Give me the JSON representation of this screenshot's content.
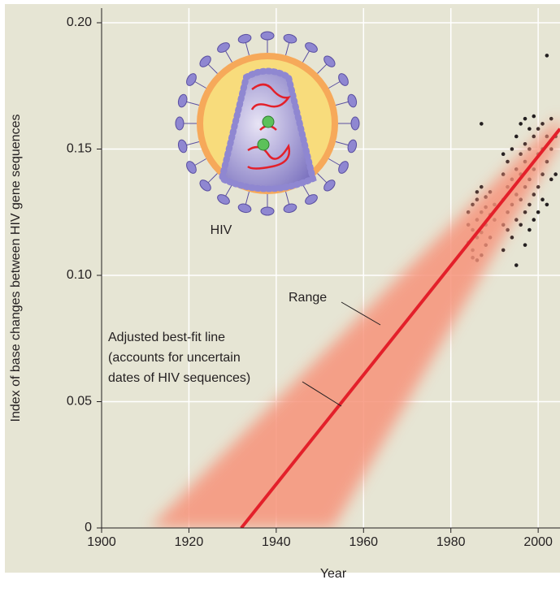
{
  "chart_data": {
    "type": "scatter",
    "x_label": "Year",
    "y_label": "Index of base changes between HIV gene sequences",
    "illustration_label": "HIV",
    "xlim": [
      1900,
      2005
    ],
    "ylim": [
      0,
      0.2
    ],
    "xticks": [
      1900,
      1920,
      1940,
      1960,
      1980,
      2000
    ],
    "yticks": [
      0,
      0.05,
      {
        "value": 0.1,
        "label": "0.10"
      },
      0.15,
      {
        "value": 0.2,
        "label": "0.20"
      }
    ],
    "grid": true,
    "series": [
      {
        "type": "scatter",
        "color": "#231f20",
        "x": [
          1984,
          1984,
          1984,
          1985,
          1985,
          1985,
          1985,
          1986,
          1986,
          1986,
          1986,
          1986,
          1987,
          1987,
          1987,
          1987,
          1987,
          1988,
          1988,
          1988,
          1988,
          1989,
          1989,
          1989,
          1990,
          1990,
          1992,
          1992,
          1992,
          1992,
          1992,
          1993,
          1993,
          1993,
          1993,
          1994,
          1994,
          1994,
          1994,
          1995,
          1995,
          1995,
          1995,
          1995,
          1996,
          1996,
          1996,
          1996,
          1996,
          1997,
          1997,
          1997,
          1997,
          1997,
          1997,
          1998,
          1998,
          1998,
          1998,
          1998,
          1999,
          1999,
          1999,
          1999,
          1999,
          2000,
          2000,
          2000,
          2000,
          2001,
          2001,
          2001,
          2001,
          2002,
          2002,
          2002,
          2002,
          2003,
          2003,
          2003,
          2004,
          2004
        ],
        "values": [
          0.113,
          0.12,
          0.125,
          0.11,
          0.118,
          0.128,
          0.107,
          0.106,
          0.115,
          0.122,
          0.13,
          0.133,
          0.108,
          0.117,
          0.125,
          0.135,
          0.16,
          0.112,
          0.12,
          0.127,
          0.131,
          0.115,
          0.124,
          0.133,
          0.122,
          0.128,
          0.11,
          0.12,
          0.13,
          0.14,
          0.148,
          0.118,
          0.125,
          0.135,
          0.145,
          0.115,
          0.128,
          0.138,
          0.15,
          0.104,
          0.122,
          0.132,
          0.142,
          0.155,
          0.12,
          0.13,
          0.14,
          0.148,
          0.16,
          0.112,
          0.125,
          0.135,
          0.145,
          0.152,
          0.162,
          0.118,
          0.128,
          0.138,
          0.15,
          0.158,
          0.122,
          0.132,
          0.142,
          0.155,
          0.163,
          0.125,
          0.135,
          0.148,
          0.158,
          0.13,
          0.14,
          0.15,
          0.16,
          0.128,
          0.145,
          0.155,
          0.187,
          0.138,
          0.15,
          0.162,
          0.14,
          0.155
        ]
      },
      {
        "type": "band",
        "name": "Range",
        "color": "#f7937a",
        "x_upper": [
          1911,
          2005
        ],
        "upper": [
          0,
          0.163
        ],
        "x_lower": [
          1953,
          2005
        ],
        "lower": [
          0,
          0.153
        ]
      },
      {
        "type": "line",
        "name": "Adjusted best-fit line",
        "note": [
          "(accounts for uncertain",
          "dates of HIV sequences)"
        ],
        "color": "#e3202a",
        "x": [
          1932,
          2005
        ],
        "values": [
          0,
          0.158
        ]
      }
    ]
  }
}
